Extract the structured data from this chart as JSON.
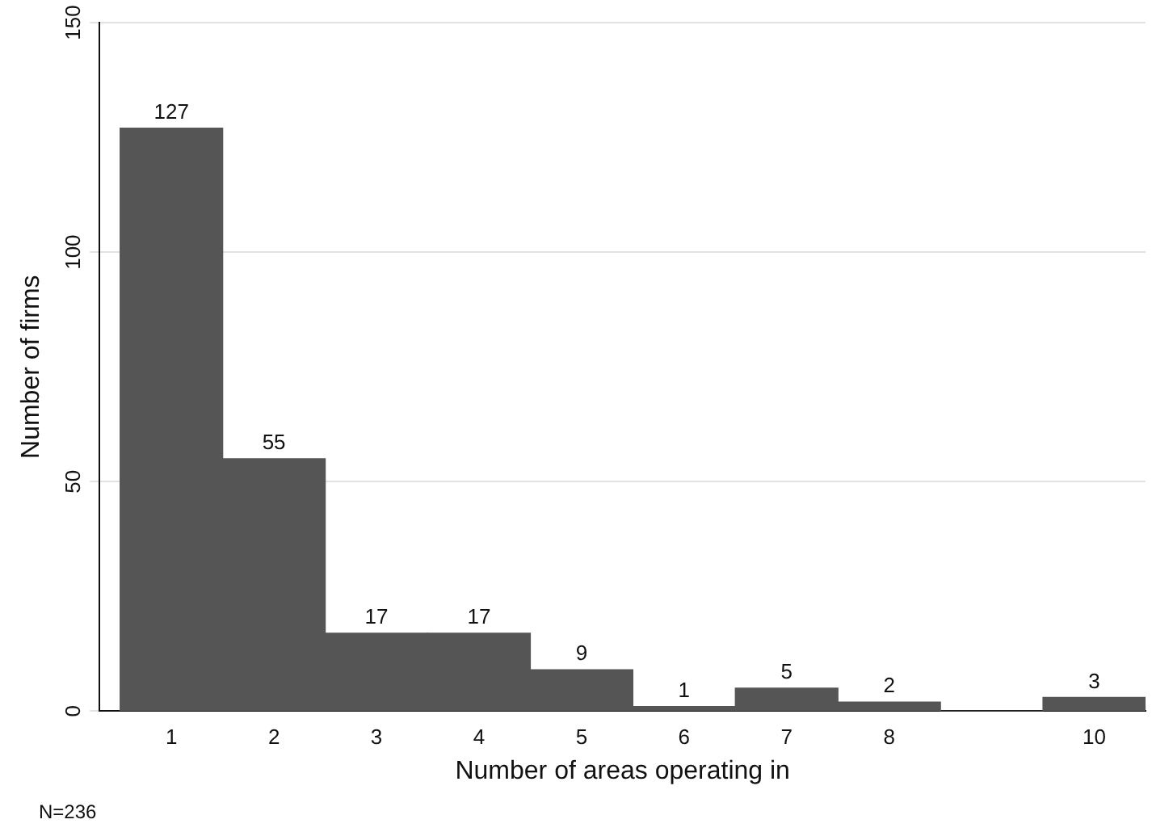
{
  "chart_data": {
    "type": "histogram",
    "xlabel": "Number of areas operating in",
    "ylabel": "Number of firms",
    "bins": [
      0.5,
      1.5,
      2.5,
      3.5,
      4.5,
      5.5,
      6.5,
      7.5,
      8.5,
      9.5,
      10.5
    ],
    "values": [
      127,
      55,
      17,
      17,
      9,
      1,
      5,
      2,
      0,
      3
    ],
    "value_labels": [
      "127",
      "55",
      "17",
      "17",
      "9",
      "1",
      "5",
      "2",
      null,
      "3"
    ],
    "color": "#555555",
    "xlim": [
      0.3,
      10.5
    ],
    "xticks": [
      1,
      2,
      3,
      4,
      5,
      6,
      7,
      8,
      10
    ],
    "ylim": [
      0,
      150
    ],
    "yticks": [
      0,
      50,
      100,
      150
    ],
    "grid": "y",
    "legend": false,
    "annotations": [
      "N=236"
    ]
  }
}
